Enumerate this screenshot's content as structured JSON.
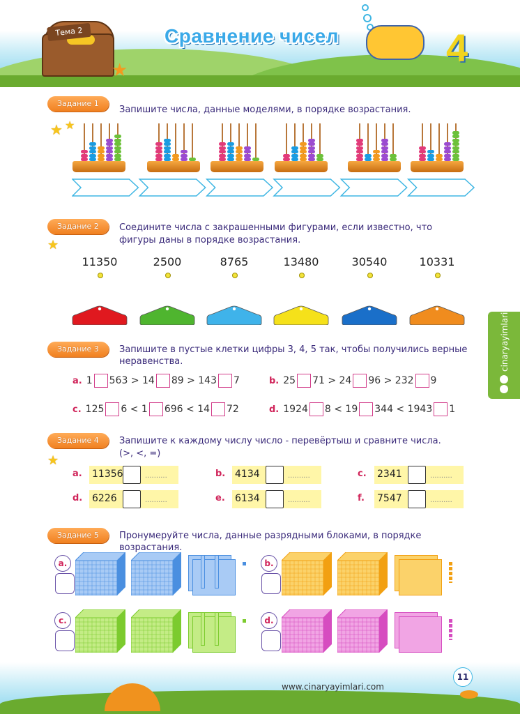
{
  "header": {
    "theme_label": "Тема 2",
    "title": "Сравнение чисел",
    "unit_number": "4"
  },
  "side_tab": {
    "text": "cinaryayimlari"
  },
  "task1": {
    "tag": "Задание 1",
    "text": "Запишите числа, данные моделями, в порядке возрастания.",
    "abaci": [
      [
        3,
        5,
        4,
        6,
        7
      ],
      [
        5,
        6,
        2,
        3,
        1
      ],
      [
        5,
        5,
        4,
        4,
        1
      ],
      [
        2,
        4,
        5,
        6,
        2
      ],
      [
        6,
        2,
        3,
        6,
        2
      ],
      [
        4,
        3,
        2,
        5,
        8
      ]
    ],
    "bead_colors": [
      "#e23a7a",
      "#1a9ce2",
      "#f39a1f",
      "#9b4bd0",
      "#6cc13a"
    ],
    "arrow_count": 6
  },
  "task2": {
    "tag": "Задание 2",
    "text_line1": "Соедините числа с закрашенными фигурами, если известно, что",
    "text_line2": "фигуры даны в порядке возрастания.",
    "numbers": [
      "11350",
      "2500",
      "8765",
      "13480",
      "30540",
      "10331"
    ],
    "shape_colors": [
      "#e0191f",
      "#4fb52f",
      "#3fb3ea",
      "#f5e11a",
      "#1a6fc9",
      "#f08c1e"
    ]
  },
  "task3": {
    "tag": "Задание 3",
    "text_line1": "Запишите в пустые клетки цифры 3, 4, 5 так, чтобы получились верные",
    "text_line2": "неравенства.",
    "items": [
      {
        "label": "a.",
        "parts": [
          "1",
          "563 > 14",
          "89 > 143",
          "7"
        ]
      },
      {
        "label": "b.",
        "parts": [
          "25",
          "71 > 24",
          "96 > 232",
          "9"
        ]
      },
      {
        "label": "c.",
        "parts": [
          "125",
          "6 < 1",
          "696 < 14",
          "72"
        ]
      },
      {
        "label": "d.",
        "parts": [
          "1924",
          "8 < 19",
          "344 < 1943",
          "1"
        ]
      }
    ]
  },
  "task4": {
    "tag": "Задание 4",
    "text_line1": "Запишите к каждому числу число - перевёртыш и сравните числа.",
    "text_line2": "(>, <, =)",
    "placeholder": "..........",
    "items": [
      {
        "label": "a.",
        "number": "11356"
      },
      {
        "label": "b.",
        "number": "4134"
      },
      {
        "label": "c.",
        "number": "2341"
      },
      {
        "label": "d.",
        "number": "6226"
      },
      {
        "label": "e.",
        "number": "6134"
      },
      {
        "label": "f.",
        "number": "7547"
      }
    ]
  },
  "task5": {
    "tag": "Задание 5",
    "text_line1": "Пронумеруйте числа, данные разрядными блоками, в порядке",
    "text_line2": "возрастания.",
    "items": [
      {
        "label": "a.",
        "color": "#4a8fe0",
        "light": "#a9cbf5"
      },
      {
        "label": "b.",
        "color": "#f2a012",
        "light": "#fbd26a"
      },
      {
        "label": "c.",
        "color": "#7ccb2e",
        "light": "#c4ec86"
      },
      {
        "label": "d.",
        "color": "#d64cc0",
        "light": "#f1a5e4"
      }
    ]
  },
  "footer": {
    "url": "www.cinaryayimlari.com",
    "page": "11"
  }
}
